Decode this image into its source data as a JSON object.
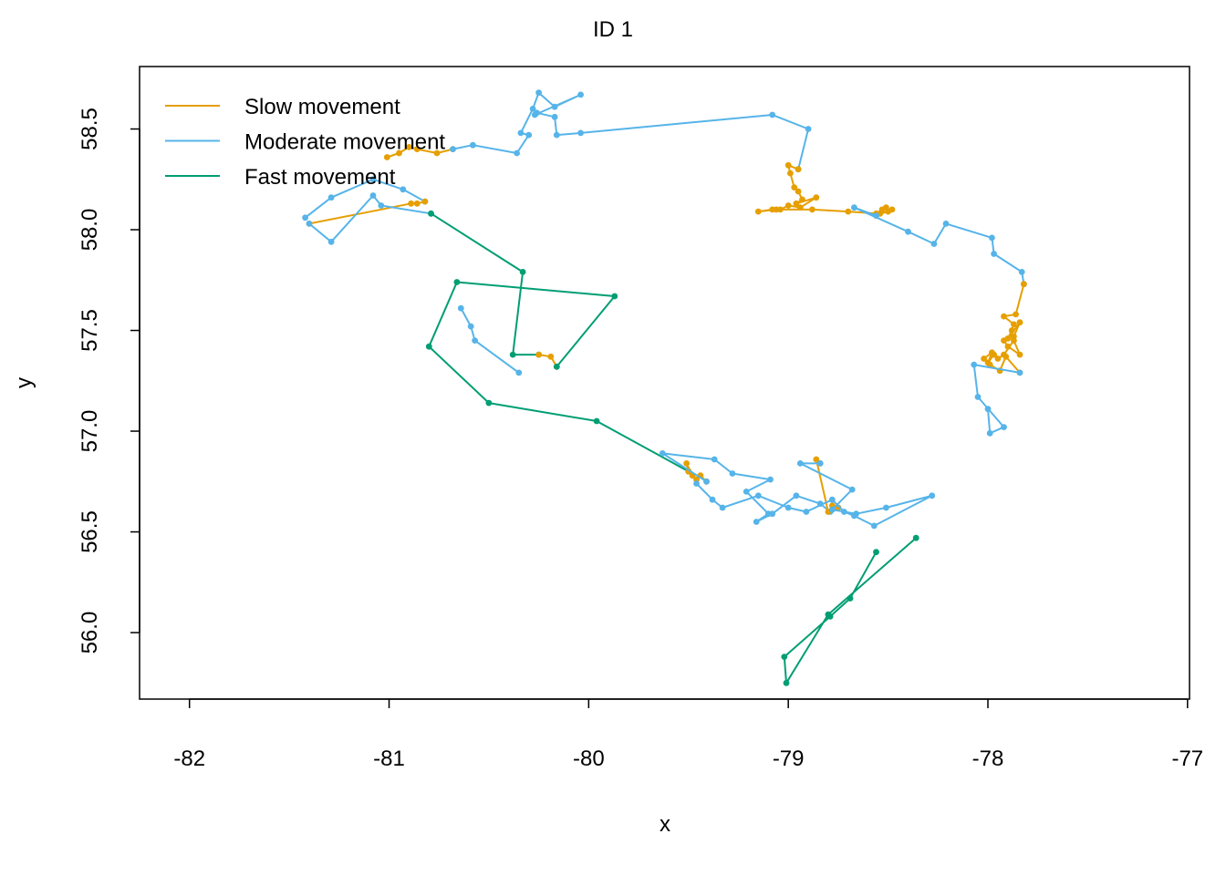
{
  "chart_data": {
    "type": "line",
    "title": "ID 1",
    "xlabel": "x",
    "ylabel": "y",
    "xlim": [
      -82.25,
      -76.99
    ],
    "ylim": [
      55.67,
      58.81
    ],
    "xticks": [
      "-82",
      "-81",
      "-80",
      "-79",
      "-78",
      "-77"
    ],
    "xtick_values": [
      -82,
      -81,
      -80,
      -79,
      -78,
      -77
    ],
    "yticks": [
      "56.0",
      "56.5",
      "57.0",
      "57.5",
      "58.0",
      "58.5"
    ],
    "ytick_values": [
      56.0,
      56.5,
      57.0,
      57.5,
      58.0,
      58.5
    ],
    "grid": false,
    "legend_position": "top-left",
    "legend": [
      {
        "label": "Slow movement",
        "color": "#E69F00"
      },
      {
        "label": "Moderate movement",
        "color": "#56B4E9"
      },
      {
        "label": "Fast movement",
        "color": "#009E73"
      }
    ],
    "series": [
      {
        "name": "Slow movement",
        "color": "#E69F00",
        "x": [
          -81.01,
          -80.95,
          -80.9,
          -80.86,
          -80.76,
          -80.68
        ],
        "y": [
          58.36,
          58.38,
          58.41,
          58.4,
          58.38,
          58.4
        ]
      },
      {
        "name": "Moderate movement",
        "color": "#56B4E9",
        "x": [
          -80.68,
          -80.58,
          -80.36,
          -80.3,
          -80.34,
          -80.28,
          -80.25,
          -80.17,
          -80.04,
          -80.27,
          -80.26,
          -80.17,
          -80.16,
          -80.04,
          -79.08,
          -78.9,
          -78.95
        ],
        "y": [
          58.4,
          58.42,
          58.38,
          58.47,
          58.48,
          58.6,
          58.68,
          58.61,
          58.67,
          58.57,
          58.58,
          58.56,
          58.47,
          58.48,
          58.57,
          58.5,
          58.3
        ]
      },
      {
        "name": "Slow movement",
        "color": "#E69F00",
        "x": [
          -78.95,
          -79.0,
          -78.99,
          -78.97,
          -78.95,
          -78.93,
          -78.96,
          -78.86,
          -78.94,
          -79.0,
          -79.04,
          -79.08,
          -79.15,
          -79.06,
          -78.88,
          -78.7,
          -78.56,
          -78.51,
          -78.5,
          -78.54,
          -78.53,
          -78.48,
          -78.56
        ],
        "y": [
          58.3,
          58.32,
          58.28,
          58.21,
          58.19,
          58.15,
          58.13,
          58.16,
          58.11,
          58.12,
          58.1,
          58.1,
          58.09,
          58.1,
          58.1,
          58.09,
          58.08,
          58.11,
          58.09,
          58.08,
          58.1,
          58.1,
          58.07
        ]
      },
      {
        "name": "Moderate movement",
        "color": "#56B4E9",
        "x": [
          -78.56,
          -78.67,
          -78.4,
          -78.27,
          -78.21,
          -77.98,
          -77.97,
          -77.83,
          -77.82
        ],
        "y": [
          58.07,
          58.11,
          57.99,
          57.93,
          58.03,
          57.96,
          57.88,
          57.79,
          57.73
        ]
      },
      {
        "name": "Slow movement",
        "color": "#E69F00",
        "x": [
          -77.82,
          -77.86,
          -77.92,
          -77.87,
          -77.88,
          -77.9,
          -77.84,
          -77.87,
          -77.92,
          -77.9,
          -77.84,
          -77.87,
          -77.92,
          -77.95,
          -77.97,
          -78.0,
          -77.98,
          -78.02,
          -77.99,
          -77.94,
          -77.91,
          -77.84
        ],
        "y": [
          57.73,
          57.58,
          57.57,
          57.53,
          57.5,
          57.46,
          57.54,
          57.47,
          57.45,
          57.42,
          57.38,
          57.45,
          57.38,
          57.36,
          57.38,
          57.34,
          57.39,
          57.36,
          57.33,
          57.3,
          57.37,
          57.29
        ]
      },
      {
        "name": "Moderate movement",
        "color": "#56B4E9",
        "x": [
          -77.84,
          -78.07,
          -78.05,
          -77.92,
          -77.99,
          -78.0
        ],
        "y": [
          57.29,
          57.33,
          57.17,
          57.02,
          56.99,
          57.11
        ]
      },
      {
        "name": "Moderate movement",
        "color": "#56B4E9",
        "x": [
          -81.42,
          -81.29,
          -81.08,
          -80.93,
          -80.82
        ],
        "y": [
          58.06,
          58.16,
          58.25,
          58.2,
          58.14
        ]
      },
      {
        "name": "Slow movement",
        "color": "#E69F00",
        "x": [
          -80.82,
          -80.86,
          -80.89,
          -81.4
        ],
        "y": [
          58.14,
          58.13,
          58.13,
          58.03
        ]
      },
      {
        "name": "Moderate movement",
        "color": "#56B4E9",
        "x": [
          -81.4,
          -81.29,
          -81.08,
          -81.04,
          -80.79
        ],
        "y": [
          58.03,
          57.94,
          58.17,
          58.12,
          58.08
        ]
      },
      {
        "name": "Fast movement",
        "color": "#009E73",
        "x": [
          -80.79,
          -80.33,
          -80.38,
          -80.25
        ],
        "y": [
          58.08,
          57.79,
          57.38,
          57.38
        ]
      },
      {
        "name": "Slow movement",
        "color": "#E69F00",
        "x": [
          -80.25,
          -80.19,
          -80.16
        ],
        "y": [
          57.38,
          57.37,
          57.32
        ]
      },
      {
        "name": "Fast movement",
        "color": "#009E73",
        "x": [
          -80.16,
          -79.87,
          -80.66,
          -80.8,
          -80.5,
          -79.96,
          -79.5
        ],
        "y": [
          57.32,
          57.67,
          57.74,
          57.42,
          57.14,
          57.05,
          56.8
        ]
      },
      {
        "name": "Moderate movement",
        "color": "#56B4E9",
        "x": [
          -80.64,
          -80.59,
          -80.57,
          -80.35
        ],
        "y": [
          57.61,
          57.52,
          57.45,
          57.29
        ]
      },
      {
        "name": "Slow movement",
        "color": "#E69F00",
        "x": [
          -79.5,
          -79.51,
          -79.48,
          -79.46,
          -79.44,
          -79.41
        ],
        "y": [
          56.8,
          56.84,
          56.78,
          56.76,
          56.78,
          56.75
        ]
      },
      {
        "name": "Moderate movement",
        "color": "#56B4E9",
        "x": [
          -79.41,
          -79.63,
          -79.37,
          -79.28,
          -79.09,
          -79.21,
          -79.1,
          -79.16,
          -79.08,
          -78.96,
          -78.84,
          -78.79,
          -78.75
        ],
        "y": [
          56.75,
          56.89,
          56.86,
          56.79,
          56.76,
          56.7,
          56.59,
          56.55,
          56.59,
          56.68,
          56.64,
          56.6,
          56.62
        ]
      },
      {
        "name": "Slow movement",
        "color": "#E69F00",
        "x": [
          -78.75,
          -78.78,
          -78.8,
          -78.86,
          -78.84
        ],
        "y": [
          56.62,
          56.63,
          56.6,
          56.86,
          56.84
        ]
      },
      {
        "name": "Moderate movement",
        "color": "#56B4E9",
        "x": [
          -78.84,
          -78.94,
          -78.68,
          -78.78,
          -78.66,
          -78.51,
          -78.28,
          -78.57,
          -78.67,
          -78.72,
          -78.78,
          -78.91,
          -79.0,
          -79.15,
          -79.33,
          -79.38,
          -79.46
        ],
        "y": [
          56.84,
          56.84,
          56.71,
          56.61,
          56.59,
          56.62,
          56.68,
          56.53,
          56.58,
          56.6,
          56.66,
          56.6,
          56.62,
          56.68,
          56.62,
          56.66,
          56.74
        ]
      },
      {
        "name": "Fast movement",
        "color": "#009E73",
        "x": [
          -78.56,
          -78.69,
          -78.79,
          -79.02,
          -79.01,
          -78.8,
          -78.36
        ],
        "y": [
          56.4,
          56.17,
          56.08,
          55.88,
          55.75,
          56.09,
          56.47
        ]
      }
    ]
  }
}
